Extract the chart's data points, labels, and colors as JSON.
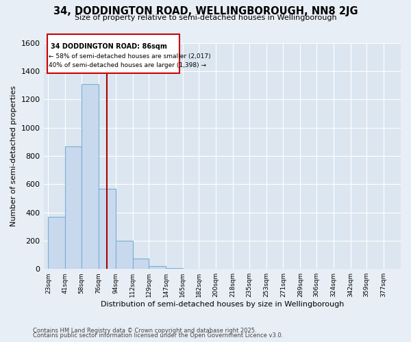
{
  "title": "34, DODDINGTON ROAD, WELLINGBOROUGH, NN8 2JG",
  "subtitle": "Size of property relative to semi-detached houses in Wellingborough",
  "xlabel": "Distribution of semi-detached houses by size in Wellingborough",
  "ylabel": "Number of semi-detached properties",
  "footnote1": "Contains HM Land Registry data © Crown copyright and database right 2025.",
  "footnote2": "Contains public sector information licensed under the Open Government Licence v3.0.",
  "property_label": "34 DODDINGTON ROAD: 86sqm",
  "annotation_smaller": "← 58% of semi-detached houses are smaller (2,017)",
  "annotation_larger": "40% of semi-detached houses are larger (1,398) →",
  "bins": [
    23,
    41,
    58,
    76,
    94,
    112,
    129,
    147,
    165,
    182,
    200,
    218,
    235,
    253,
    271,
    289,
    306,
    324,
    342,
    359,
    377
  ],
  "counts": [
    370,
    870,
    1310,
    570,
    200,
    75,
    20,
    5,
    2,
    1,
    0,
    0,
    0,
    0,
    0,
    0,
    0,
    0,
    0,
    0
  ],
  "bar_color": "#c8d9ee",
  "bar_edge_color": "#7aafd4",
  "vline_color": "#aa0000",
  "vline_x": 85,
  "background_color": "#e8eef5",
  "plot_bg_color": "#dce6f0",
  "ylim": [
    0,
    1600
  ],
  "yticks": [
    0,
    200,
    400,
    600,
    800,
    1000,
    1200,
    1400,
    1600
  ],
  "ann_box_facecolor": "white",
  "ann_box_edgecolor": "#cc0000"
}
